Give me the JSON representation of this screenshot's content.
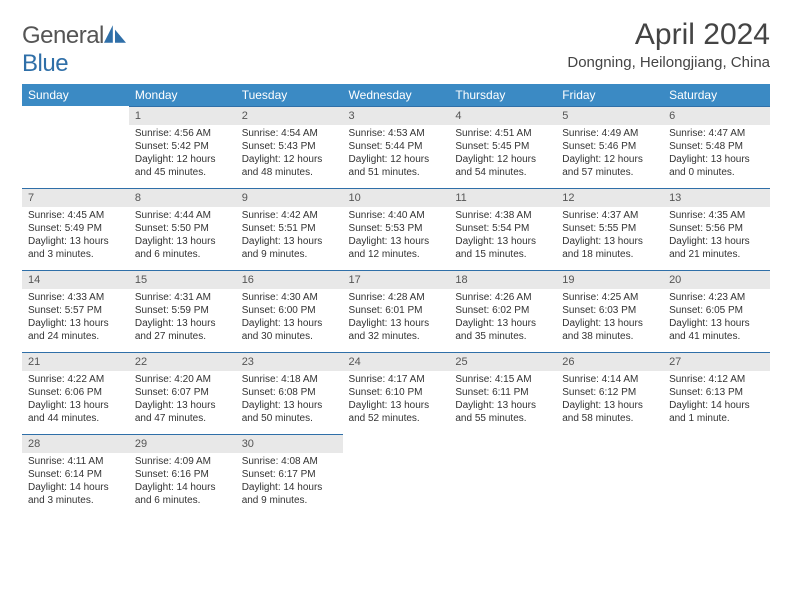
{
  "logo": {
    "text_general": "General",
    "text_blue": "Blue"
  },
  "title": "April 2024",
  "location": "Dongning, Heilongjiang, China",
  "colors": {
    "header_bg": "#3b8ac4",
    "header_text": "#ffffff",
    "daynum_bg": "#e8e8e8",
    "daynum_border": "#2f6fa8",
    "body_bg": "#ffffff",
    "text": "#333333"
  },
  "weekdays": [
    "Sunday",
    "Monday",
    "Tuesday",
    "Wednesday",
    "Thursday",
    "Friday",
    "Saturday"
  ],
  "weeks": [
    [
      null,
      {
        "n": 1,
        "sr": "4:56 AM",
        "ss": "5:42 PM",
        "dl": "12 hours and 45 minutes."
      },
      {
        "n": 2,
        "sr": "4:54 AM",
        "ss": "5:43 PM",
        "dl": "12 hours and 48 minutes."
      },
      {
        "n": 3,
        "sr": "4:53 AM",
        "ss": "5:44 PM",
        "dl": "12 hours and 51 minutes."
      },
      {
        "n": 4,
        "sr": "4:51 AM",
        "ss": "5:45 PM",
        "dl": "12 hours and 54 minutes."
      },
      {
        "n": 5,
        "sr": "4:49 AM",
        "ss": "5:46 PM",
        "dl": "12 hours and 57 minutes."
      },
      {
        "n": 6,
        "sr": "4:47 AM",
        "ss": "5:48 PM",
        "dl": "13 hours and 0 minutes."
      }
    ],
    [
      {
        "n": 7,
        "sr": "4:45 AM",
        "ss": "5:49 PM",
        "dl": "13 hours and 3 minutes."
      },
      {
        "n": 8,
        "sr": "4:44 AM",
        "ss": "5:50 PM",
        "dl": "13 hours and 6 minutes."
      },
      {
        "n": 9,
        "sr": "4:42 AM",
        "ss": "5:51 PM",
        "dl": "13 hours and 9 minutes."
      },
      {
        "n": 10,
        "sr": "4:40 AM",
        "ss": "5:53 PM",
        "dl": "13 hours and 12 minutes."
      },
      {
        "n": 11,
        "sr": "4:38 AM",
        "ss": "5:54 PM",
        "dl": "13 hours and 15 minutes."
      },
      {
        "n": 12,
        "sr": "4:37 AM",
        "ss": "5:55 PM",
        "dl": "13 hours and 18 minutes."
      },
      {
        "n": 13,
        "sr": "4:35 AM",
        "ss": "5:56 PM",
        "dl": "13 hours and 21 minutes."
      }
    ],
    [
      {
        "n": 14,
        "sr": "4:33 AM",
        "ss": "5:57 PM",
        "dl": "13 hours and 24 minutes."
      },
      {
        "n": 15,
        "sr": "4:31 AM",
        "ss": "5:59 PM",
        "dl": "13 hours and 27 minutes."
      },
      {
        "n": 16,
        "sr": "4:30 AM",
        "ss": "6:00 PM",
        "dl": "13 hours and 30 minutes."
      },
      {
        "n": 17,
        "sr": "4:28 AM",
        "ss": "6:01 PM",
        "dl": "13 hours and 32 minutes."
      },
      {
        "n": 18,
        "sr": "4:26 AM",
        "ss": "6:02 PM",
        "dl": "13 hours and 35 minutes."
      },
      {
        "n": 19,
        "sr": "4:25 AM",
        "ss": "6:03 PM",
        "dl": "13 hours and 38 minutes."
      },
      {
        "n": 20,
        "sr": "4:23 AM",
        "ss": "6:05 PM",
        "dl": "13 hours and 41 minutes."
      }
    ],
    [
      {
        "n": 21,
        "sr": "4:22 AM",
        "ss": "6:06 PM",
        "dl": "13 hours and 44 minutes."
      },
      {
        "n": 22,
        "sr": "4:20 AM",
        "ss": "6:07 PM",
        "dl": "13 hours and 47 minutes."
      },
      {
        "n": 23,
        "sr": "4:18 AM",
        "ss": "6:08 PM",
        "dl": "13 hours and 50 minutes."
      },
      {
        "n": 24,
        "sr": "4:17 AM",
        "ss": "6:10 PM",
        "dl": "13 hours and 52 minutes."
      },
      {
        "n": 25,
        "sr": "4:15 AM",
        "ss": "6:11 PM",
        "dl": "13 hours and 55 minutes."
      },
      {
        "n": 26,
        "sr": "4:14 AM",
        "ss": "6:12 PM",
        "dl": "13 hours and 58 minutes."
      },
      {
        "n": 27,
        "sr": "4:12 AM",
        "ss": "6:13 PM",
        "dl": "14 hours and 1 minute."
      }
    ],
    [
      {
        "n": 28,
        "sr": "4:11 AM",
        "ss": "6:14 PM",
        "dl": "14 hours and 3 minutes."
      },
      {
        "n": 29,
        "sr": "4:09 AM",
        "ss": "6:16 PM",
        "dl": "14 hours and 6 minutes."
      },
      {
        "n": 30,
        "sr": "4:08 AM",
        "ss": "6:17 PM",
        "dl": "14 hours and 9 minutes."
      },
      null,
      null,
      null,
      null
    ]
  ],
  "labels": {
    "sunrise": "Sunrise:",
    "sunset": "Sunset:",
    "daylight": "Daylight:"
  }
}
